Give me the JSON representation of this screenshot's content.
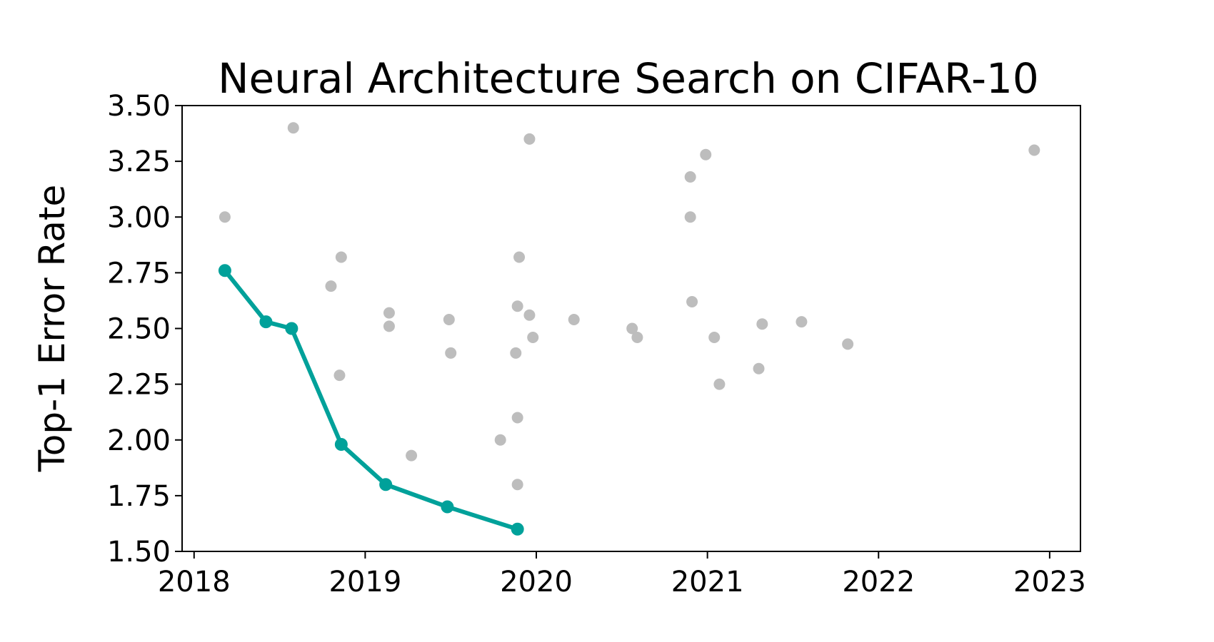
{
  "chart_data": {
    "type": "scatter",
    "title": "Neural Architecture Search on CIFAR-10",
    "xlabel": "",
    "ylabel": "Top-1 Error Rate",
    "xlim": [
      2017.93,
      2023.18
    ],
    "ylim": [
      1.5,
      3.5
    ],
    "x_ticks": [
      2018,
      2019,
      2020,
      2021,
      2022,
      2023
    ],
    "x_tick_labels": [
      "2018",
      "2019",
      "2020",
      "2021",
      "2022",
      "2023"
    ],
    "y_ticks": [
      1.5,
      1.75,
      2.0,
      2.25,
      2.5,
      2.75,
      3.0,
      3.25,
      3.5
    ],
    "y_tick_labels": [
      "1.50",
      "1.75",
      "2.00",
      "2.25",
      "2.50",
      "2.75",
      "3.00",
      "3.25",
      "3.50"
    ],
    "grid": false,
    "legend": "none",
    "colors": {
      "frontier": "#00a19a",
      "points": "#bdbdbd"
    },
    "series": [
      {
        "kind": "scatter",
        "color": "#bdbdbd",
        "points": [
          {
            "x": 2018.18,
            "y": 3.0
          },
          {
            "x": 2018.58,
            "y": 3.4
          },
          {
            "x": 2018.8,
            "y": 2.69
          },
          {
            "x": 2018.86,
            "y": 2.82
          },
          {
            "x": 2018.85,
            "y": 2.29
          },
          {
            "x": 2019.14,
            "y": 2.57
          },
          {
            "x": 2019.14,
            "y": 2.51
          },
          {
            "x": 2019.27,
            "y": 1.93
          },
          {
            "x": 2019.49,
            "y": 2.54
          },
          {
            "x": 2019.5,
            "y": 2.39
          },
          {
            "x": 2019.79,
            "y": 2.0
          },
          {
            "x": 2019.88,
            "y": 2.39
          },
          {
            "x": 2019.89,
            "y": 2.6
          },
          {
            "x": 2019.9,
            "y": 2.82
          },
          {
            "x": 2019.89,
            "y": 2.1
          },
          {
            "x": 2019.89,
            "y": 1.8
          },
          {
            "x": 2019.96,
            "y": 3.35
          },
          {
            "x": 2019.96,
            "y": 2.56
          },
          {
            "x": 2019.98,
            "y": 2.46
          },
          {
            "x": 2020.22,
            "y": 2.54
          },
          {
            "x": 2020.56,
            "y": 2.5
          },
          {
            "x": 2020.59,
            "y": 2.46
          },
          {
            "x": 2020.9,
            "y": 3.18
          },
          {
            "x": 2020.9,
            "y": 3.0
          },
          {
            "x": 2020.91,
            "y": 2.62
          },
          {
            "x": 2020.99,
            "y": 3.28
          },
          {
            "x": 2021.04,
            "y": 2.46
          },
          {
            "x": 2021.07,
            "y": 2.25
          },
          {
            "x": 2021.3,
            "y": 2.32
          },
          {
            "x": 2021.32,
            "y": 2.52
          },
          {
            "x": 2021.55,
            "y": 2.53
          },
          {
            "x": 2021.82,
            "y": 2.43
          },
          {
            "x": 2022.91,
            "y": 3.3
          }
        ]
      },
      {
        "kind": "line",
        "color": "#00a19a",
        "points": [
          {
            "x": 2018.18,
            "y": 2.76
          },
          {
            "x": 2018.42,
            "y": 2.53
          },
          {
            "x": 2018.57,
            "y": 2.5
          },
          {
            "x": 2018.86,
            "y": 1.98
          },
          {
            "x": 2019.12,
            "y": 1.8
          },
          {
            "x": 2019.48,
            "y": 1.7
          },
          {
            "x": 2019.89,
            "y": 1.6
          }
        ]
      }
    ]
  }
}
